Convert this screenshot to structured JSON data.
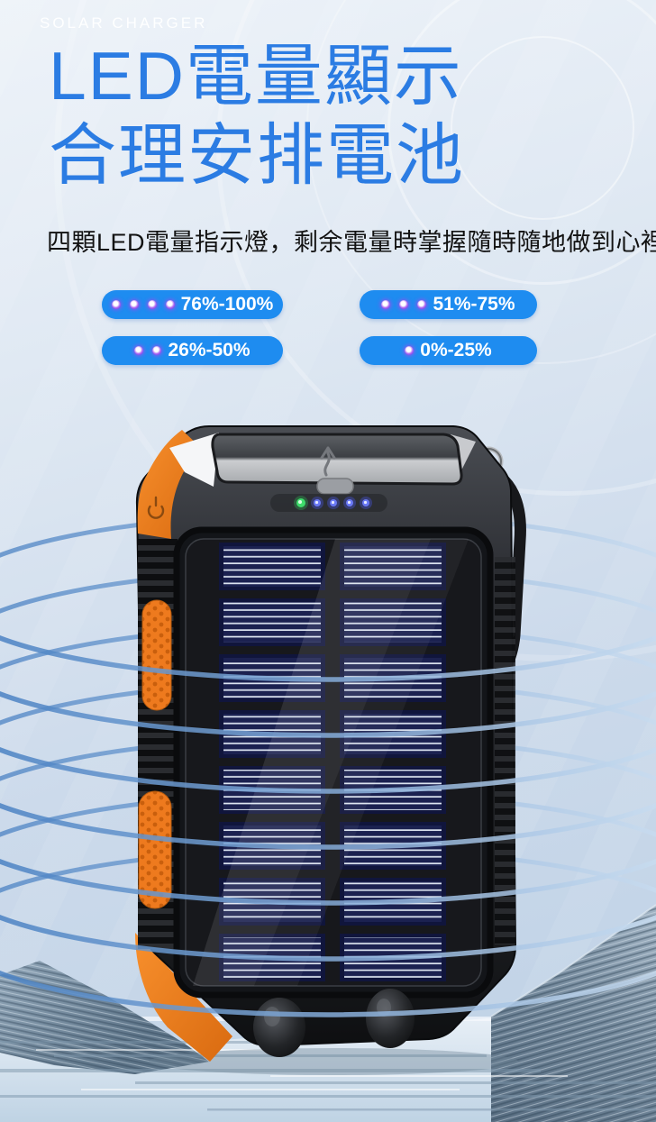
{
  "header": {
    "eyebrow": "SOLAR CHARGER",
    "title_line1": "LED電量顯示",
    "title_line2": "合理安排電池",
    "subtitle": "四顆LED電量指示燈，剩余電量時掌握隨時隨地做到心裡有數"
  },
  "battery_levels": [
    {
      "label": "76%-100%",
      "dots": 4
    },
    {
      "label": "51%-75%",
      "dots": 3
    },
    {
      "label": "26%-50%",
      "dots": 2
    },
    {
      "label": "0%-25%",
      "dots": 1
    }
  ],
  "product": {
    "status_leds": {
      "green": 1,
      "blue": 4
    }
  },
  "colors": {
    "title_blue": "#2b7ce3",
    "pill_blue": "#1e8cf0",
    "led_purple": "#7a1fe0",
    "accent_orange": "#ef7c1f",
    "ring_blue": "#6f9fd8",
    "panel_navy": "#1b2150"
  }
}
